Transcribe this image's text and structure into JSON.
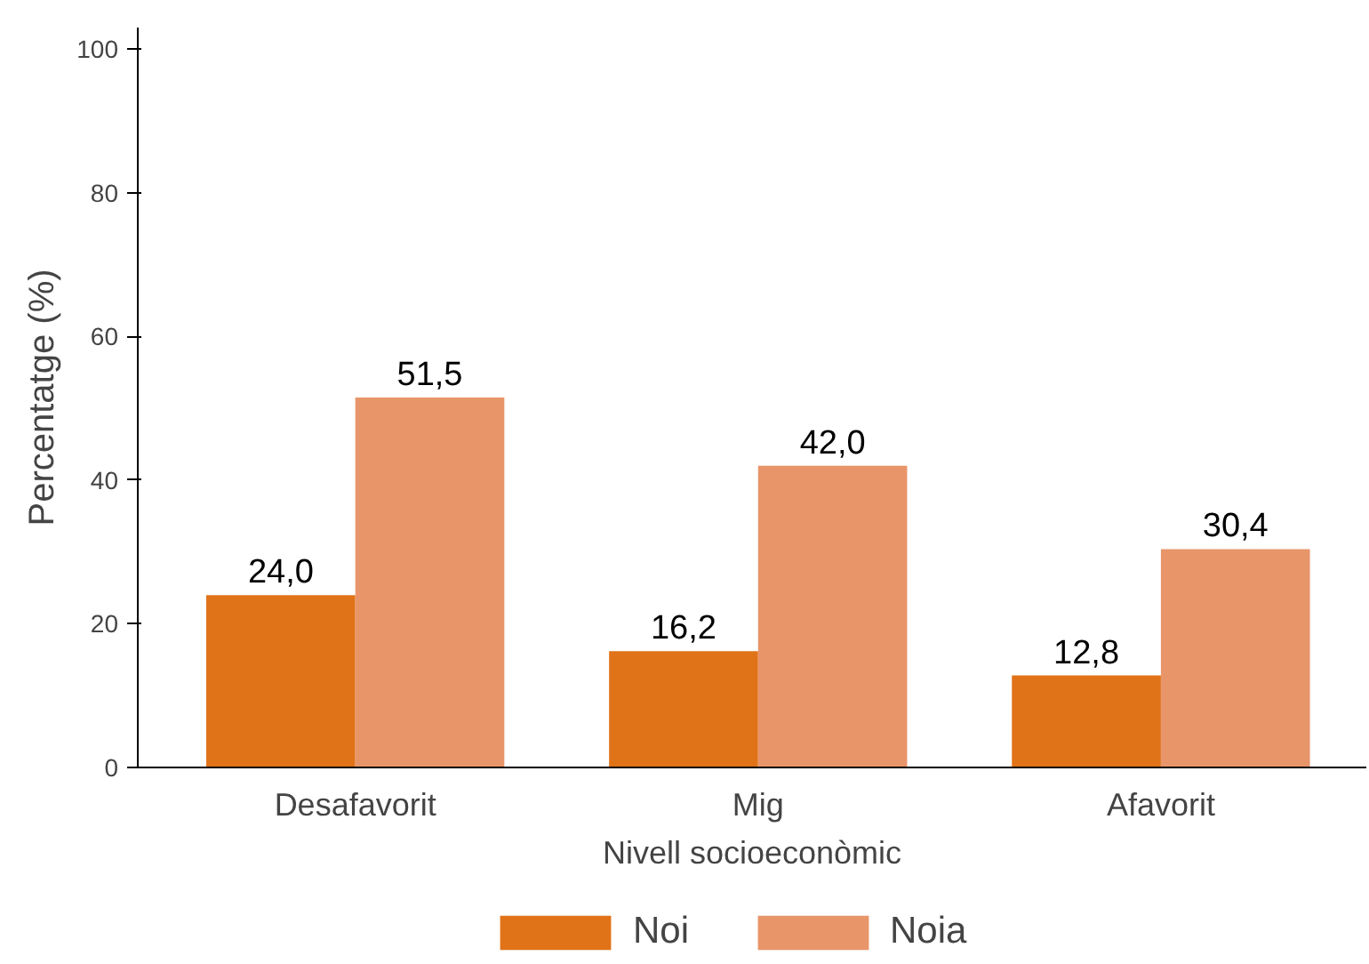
{
  "chart_data": {
    "type": "bar",
    "xlabel": "Nivell socioeconòmic",
    "ylabel": "Percentatge (%)",
    "categories": [
      "Desafavorit",
      "Mig",
      "Afavorit"
    ],
    "series": [
      {
        "name": "Noi",
        "color": "#e07318",
        "values": [
          24.0,
          16.2,
          12.8
        ],
        "value_labels": [
          "24,0",
          "16,2",
          "12,8"
        ]
      },
      {
        "name": "Noia",
        "color": "#e8956a",
        "values": [
          51.5,
          42.0,
          30.4
        ],
        "value_labels": [
          "51,5",
          "42,0",
          "30,4"
        ]
      }
    ],
    "ylim": [
      0,
      103
    ],
    "yticks": [
      0,
      20,
      40,
      60,
      80,
      100
    ],
    "grid": false,
    "legend": "bottom"
  }
}
